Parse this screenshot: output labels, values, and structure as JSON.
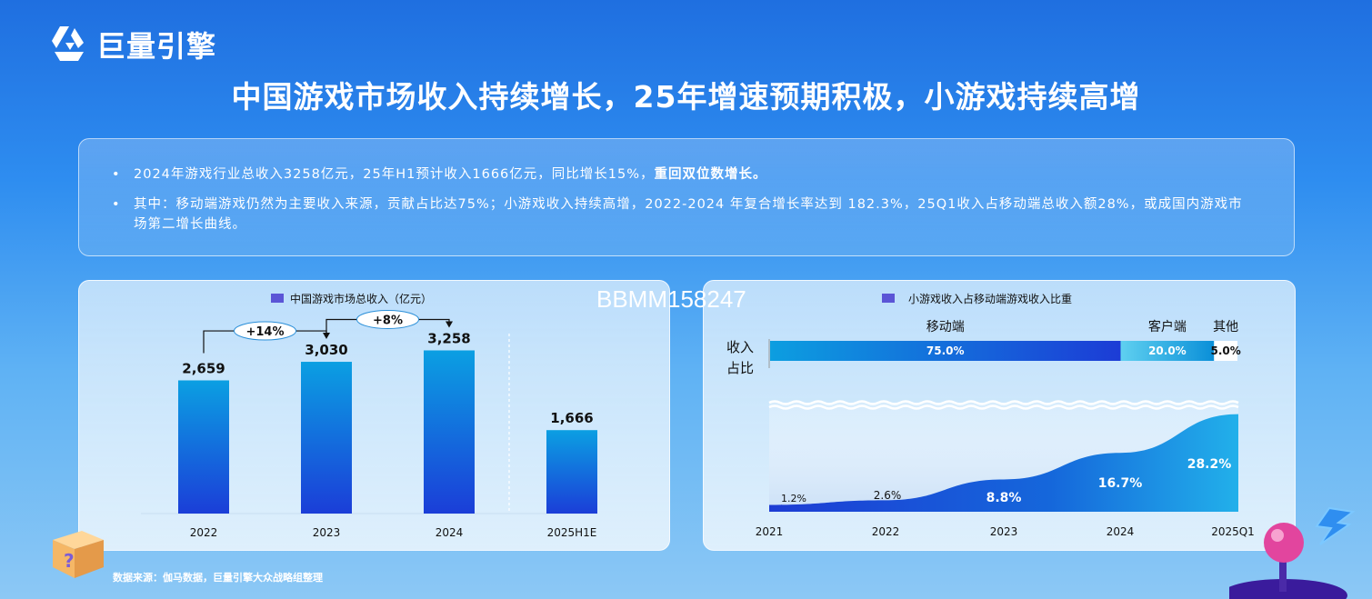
{
  "header": {
    "brand": "巨量引擎",
    "title": "中国游戏市场收入持续增长，25年增速预期积极，小游戏持续高增"
  },
  "summary": {
    "bullet_symbol": "•",
    "bullet1_text": "2024年游戏行业总收入3258亿元，25年H1预计收入1666亿元，同比增长15%，",
    "bullet1_bold": "重回双位数增长。",
    "bullet2_text": "其中：移动端游戏仍然为主要收入来源，贡献占比达75%；小游戏收入持续高增，2022-2024 年复合增长率达到 182.3%，25Q1收入占移动端总收入额28%，或成国内游戏市场第二增长曲线。"
  },
  "watermark": "BBMM158247",
  "source": "数据来源：伽马数据，巨量引擎大众战略组整理",
  "colors": {
    "bar_top": "#0a9ce0",
    "bar_bottom": "#1a3fd8",
    "legend": "#5b55d6",
    "area_dark": "#1a3fd8",
    "area_light": "#20a9e8"
  },
  "chart_data": [
    {
      "type": "bar",
      "legend": "中国游戏市场总收入（亿元）",
      "categories": [
        "2022",
        "2023",
        "2024",
        "2025H1E"
      ],
      "values": [
        2659,
        3030,
        3258,
        1666
      ],
      "value_labels": [
        "2,659",
        "3,030",
        "3,258",
        "1,666"
      ],
      "growth_annotations": [
        {
          "from": "2022",
          "to": "2023",
          "label": "+14%"
        },
        {
          "from": "2023",
          "to": "2024",
          "label": "+8%"
        }
      ]
    },
    {
      "type": "area",
      "legend": "小游戏收入占移动端游戏收入比重",
      "share_bar": {
        "row_label": "收入\n占比",
        "segments": [
          {
            "name": "移动端",
            "value": 75.0,
            "label": "75.0%"
          },
          {
            "name": "客户端",
            "value": 20.0,
            "label": "20.0%"
          },
          {
            "name": "其他",
            "value": 5.0,
            "label": "5.0%"
          }
        ]
      },
      "x": [
        "2021",
        "2022",
        "2023",
        "2024",
        "2025Q1"
      ],
      "values": [
        1.2,
        2.6,
        8.8,
        16.7,
        28.2
      ],
      "value_labels": [
        "1.2%",
        "2.6%",
        "8.8%",
        "16.7%",
        "28.2%"
      ]
    }
  ]
}
